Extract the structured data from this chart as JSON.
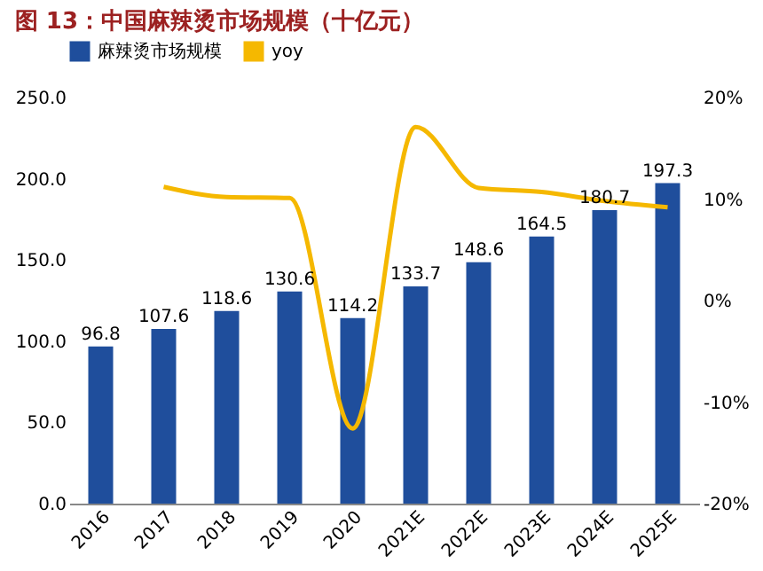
{
  "chart_data": {
    "type": "bar",
    "title": "图 13：中国麻辣烫市场规模（十亿元）",
    "categories": [
      "2016",
      "2017",
      "2018",
      "2019",
      "2020",
      "2021E",
      "2022E",
      "2023E",
      "2024E",
      "2025E"
    ],
    "series": [
      {
        "name": "麻辣烫市场规模",
        "color": "#1f4e9c",
        "values": [
          96.8,
          107.6,
          118.6,
          130.6,
          114.2,
          133.7,
          148.6,
          164.5,
          180.7,
          197.3
        ],
        "value_labels": [
          "96.8",
          "107.6",
          "118.6",
          "130.6",
          "114.2",
          "133.7",
          "148.6",
          "164.5",
          "180.7",
          "197.3"
        ]
      },
      {
        "name": "yoy",
        "type": "line",
        "axis": "y2",
        "color": "#f5b800",
        "values": [
          null,
          11.2,
          10.2,
          10.1,
          -12.6,
          17.1,
          11.1,
          10.7,
          9.8,
          9.2
        ]
      }
    ],
    "ylim": [
      0,
      250
    ],
    "yticks": [
      {
        "value": 0,
        "label": "0.0"
      },
      {
        "value": 50,
        "label": "50.0"
      },
      {
        "value": 100,
        "label": "100.0"
      },
      {
        "value": 150,
        "label": "150.0"
      },
      {
        "value": 200,
        "label": "200.0"
      },
      {
        "value": 250,
        "label": "250.0"
      }
    ],
    "y2lim": [
      -20,
      20
    ],
    "y2ticks": [
      {
        "value": -20,
        "label": "-20%"
      },
      {
        "value": -10,
        "label": "-10%"
      },
      {
        "value": 0,
        "label": "0%"
      },
      {
        "value": 10,
        "label": "10%"
      },
      {
        "value": 20,
        "label": "20%"
      }
    ],
    "legend": "top",
    "grid": false,
    "marker": "none"
  }
}
